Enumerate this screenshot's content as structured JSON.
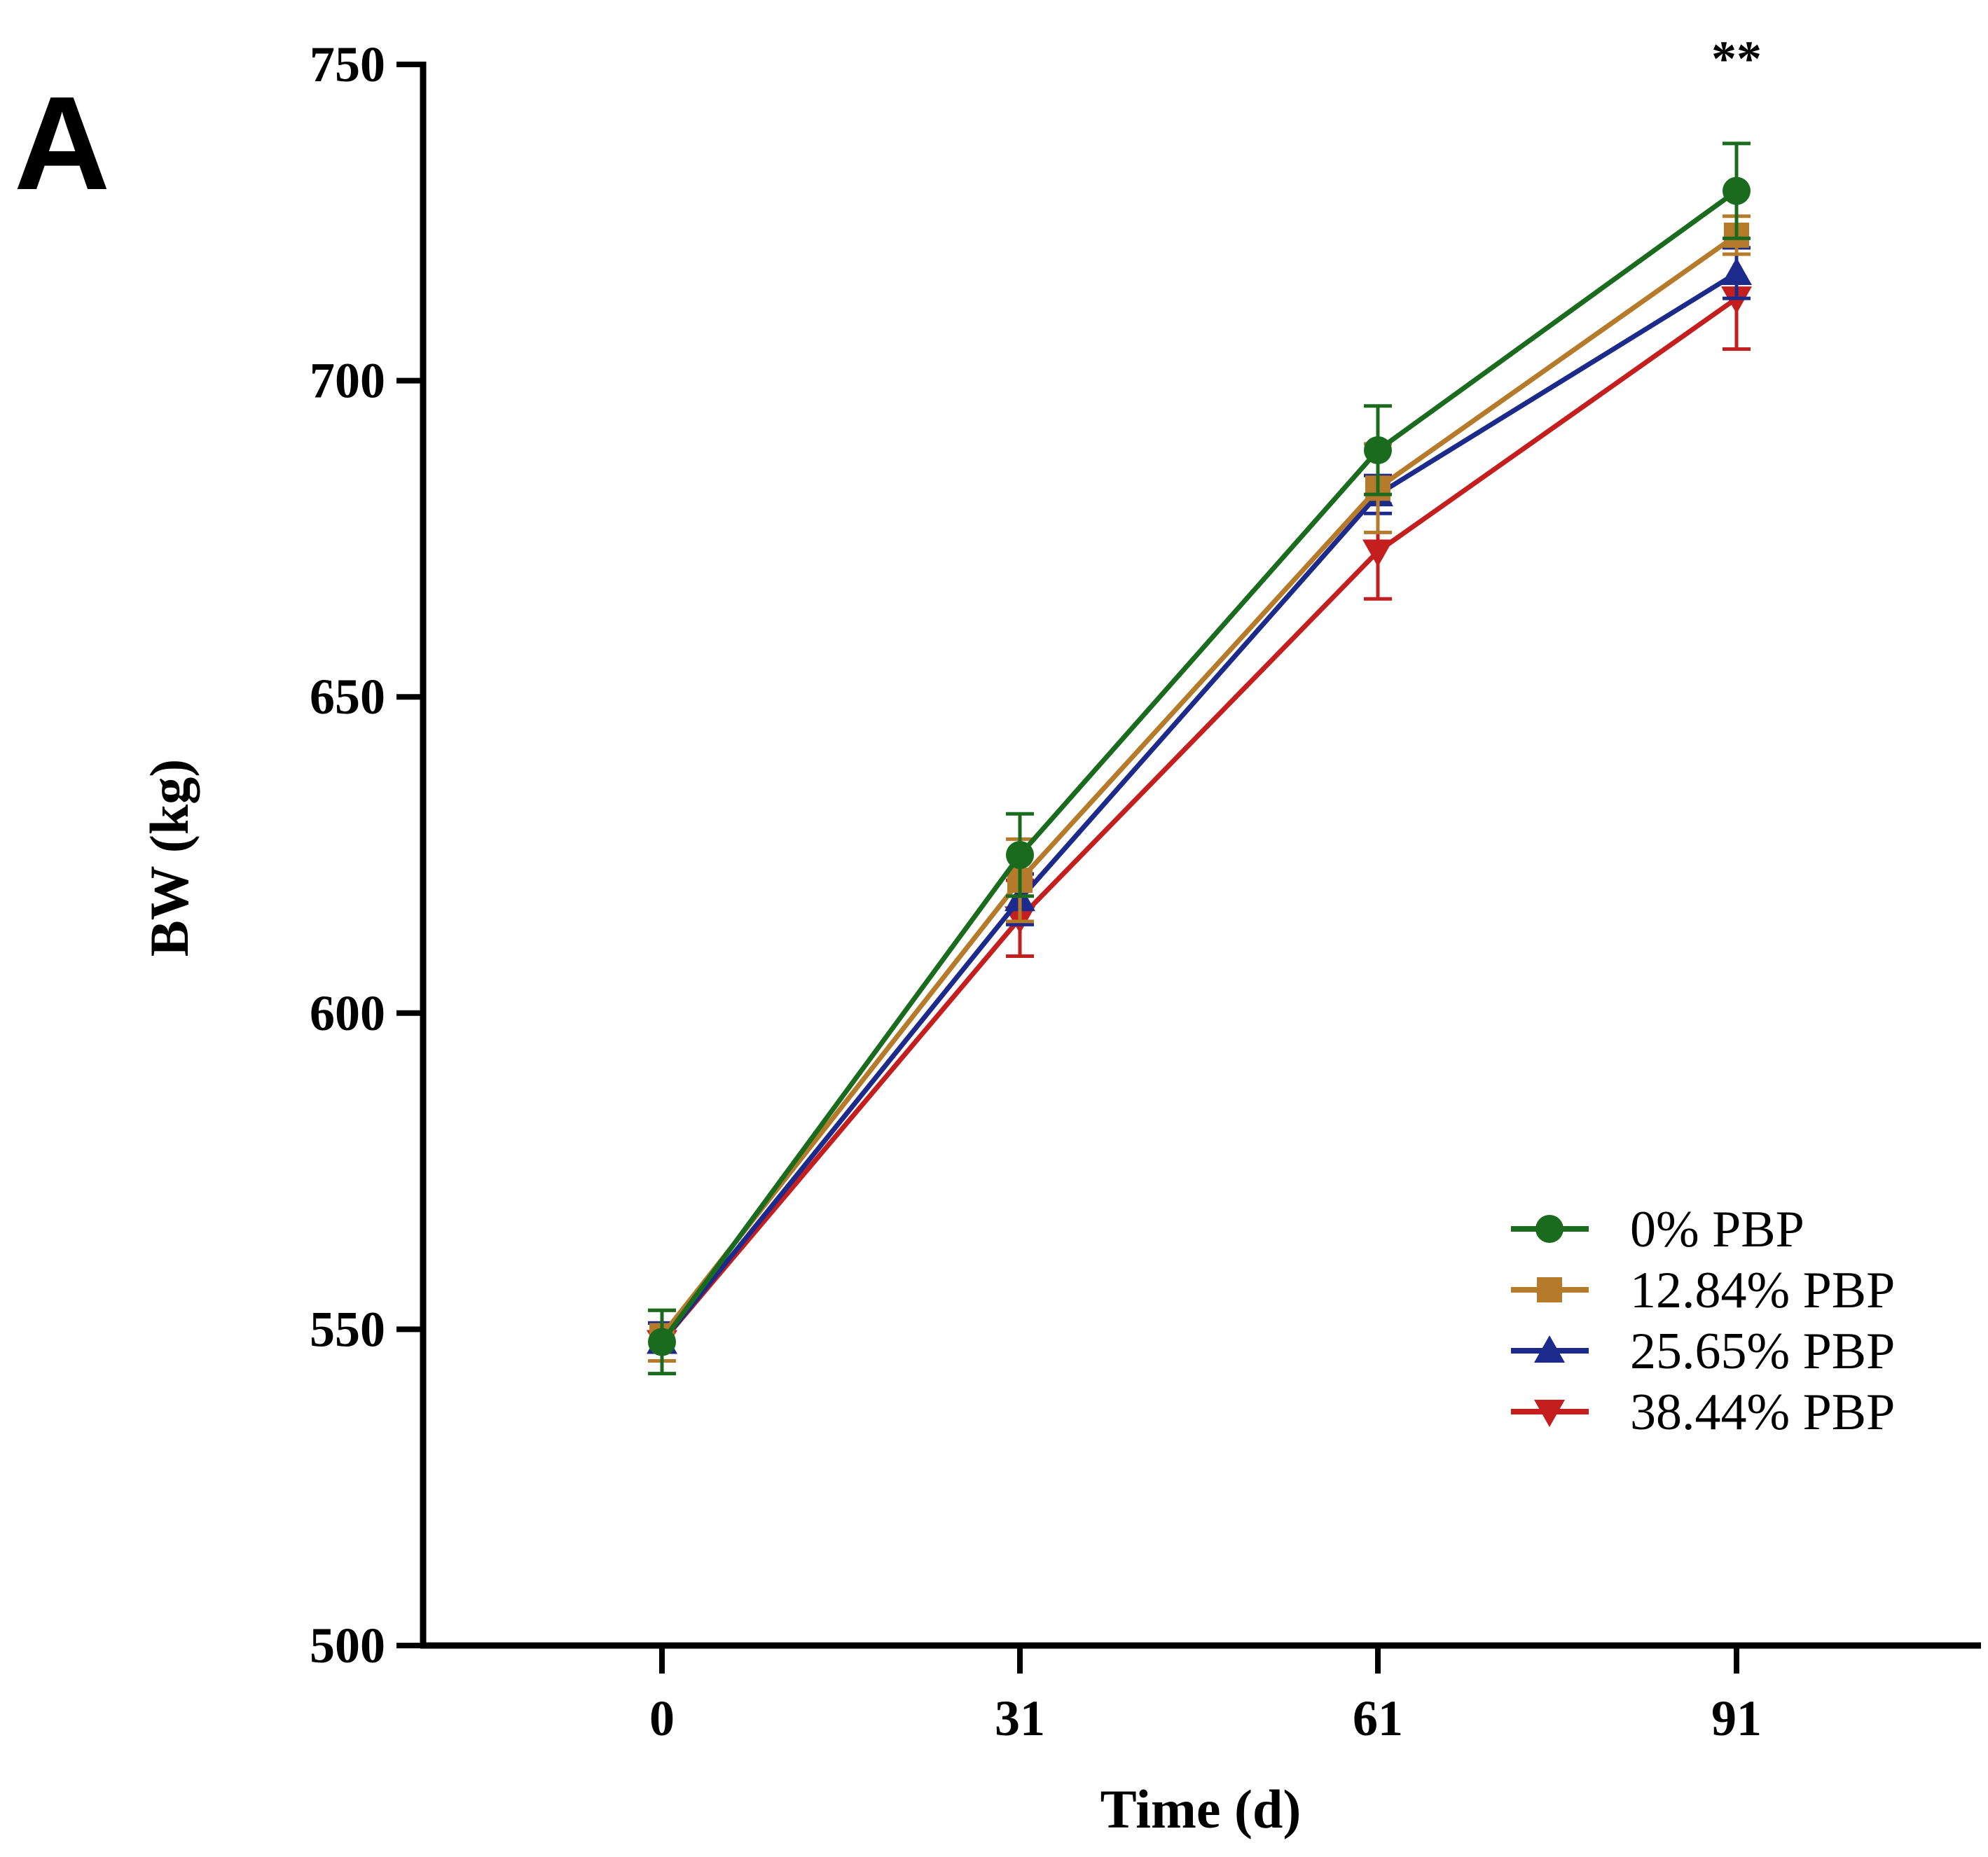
{
  "panel_label": "A",
  "chart_data": {
    "type": "line",
    "title": "",
    "xlabel": "Time (d)",
    "ylabel": "BW (kg)",
    "x": [
      0,
      31,
      61,
      91
    ],
    "x_tick_labels": [
      "0",
      "31",
      "61",
      "91"
    ],
    "ylim": [
      500,
      750
    ],
    "y_ticks": [
      500,
      550,
      600,
      650,
      700,
      750
    ],
    "y_tick_labels": [
      "500",
      "550",
      "600",
      "650",
      "700",
      "750"
    ],
    "grid": false,
    "legend_position": "bottom-right",
    "series": [
      {
        "name": "0% PBP",
        "color": "#1a6b1e",
        "marker": "circle",
        "values": [
          548,
          625,
          689,
          730
        ],
        "errors": [
          5,
          6.5,
          7,
          7.5
        ]
      },
      {
        "name": "12.84% PBP",
        "color": "#b57a2a",
        "marker": "square",
        "values": [
          549,
          621,
          683,
          723
        ],
        "errors": [
          4,
          6.5,
          7,
          3
        ]
      },
      {
        "name": "25.65% PBP",
        "color": "#1c2a8c",
        "marker": "triangle-up",
        "values": [
          548,
          618,
          682,
          717
        ],
        "errors": [
          3,
          4,
          3,
          4
        ]
      },
      {
        "name": "38.44% PBP",
        "color": "#c41e1e",
        "marker": "triangle-down",
        "values": [
          548,
          615,
          673,
          713
        ],
        "errors": [
          3,
          6,
          7.5,
          8
        ]
      }
    ],
    "annotations": [
      {
        "x": 91,
        "text": "**"
      }
    ]
  }
}
